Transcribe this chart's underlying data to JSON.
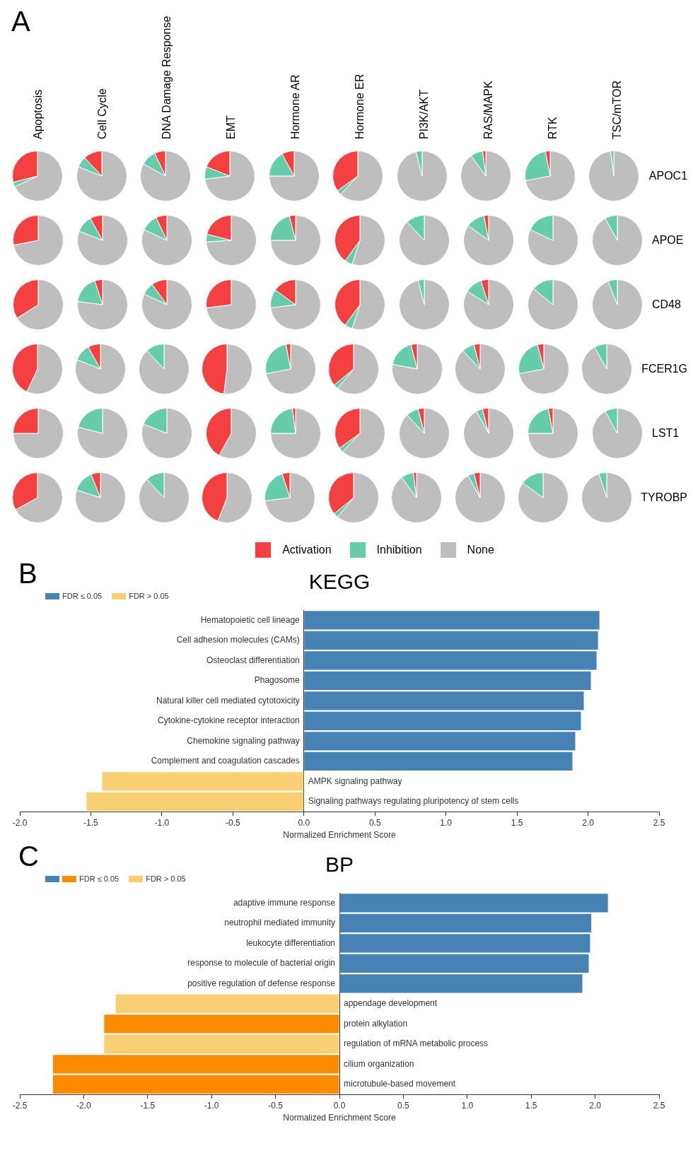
{
  "chart_data": [
    {
      "type": "pie",
      "annotations": [
        "A"
      ],
      "legend": "bottom",
      "categories": [
        "Activation",
        "Inhibition",
        "None"
      ],
      "colors": [
        "#f44040",
        "#66cdaa",
        "#bebebe"
      ],
      "y_categories": [
        "APOC1",
        "APOE",
        "CD48",
        "FCER1G",
        "LST1",
        "TYROBP"
      ],
      "series": [
        {
          "name": "Apoptosis",
          "values": [
            29,
            3,
            68
          ]
        },
        {
          "name": "Cell Cycle",
          "values": [
            12,
            7,
            81
          ]
        },
        {
          "name": "DNA Damage Response",
          "values": [
            7,
            10,
            83
          ]
        },
        {
          "name": "EMT",
          "values": [
            19,
            8,
            73
          ]
        },
        {
          "name": "Hormone AR",
          "values": [
            8,
            17,
            75
          ]
        },
        {
          "name": "Hormone ER",
          "values": [
            35,
            3,
            62
          ]
        },
        {
          "name": "PI3K/AKT",
          "values": [
            0,
            4,
            96
          ]
        },
        {
          "name": "RAS/MAPK",
          "values": [
            2,
            8,
            90
          ]
        },
        {
          "name": "RTK",
          "values": [
            3,
            25,
            72
          ]
        },
        {
          "name": "TSC/mTOR",
          "values": [
            0,
            2,
            98
          ]
        },
        {
          "values": [
            28,
            0,
            72
          ]
        },
        {
          "values": [
            8,
            11,
            81
          ]
        },
        {
          "values": [
            7,
            11,
            82
          ]
        },
        {
          "values": [
            21,
            5,
            74
          ]
        },
        {
          "values": [
            4,
            21,
            75
          ]
        },
        {
          "values": [
            40,
            5,
            55
          ]
        },
        {
          "values": [
            0,
            12,
            88
          ]
        },
        {
          "values": [
            3,
            12,
            85
          ]
        },
        {
          "values": [
            0,
            18,
            82
          ]
        },
        {
          "values": [
            0,
            8,
            92
          ]
        },
        {
          "values": [
            34,
            0,
            66
          ]
        },
        {
          "values": [
            5,
            18,
            77
          ]
        },
        {
          "values": [
            10,
            8,
            82
          ]
        },
        {
          "values": [
            27,
            0,
            73
          ]
        },
        {
          "values": [
            15,
            12,
            73
          ]
        },
        {
          "values": [
            40,
            5,
            55
          ]
        },
        {
          "values": [
            0,
            4,
            96
          ]
        },
        {
          "values": [
            5,
            11,
            84
          ]
        },
        {
          "values": [
            0,
            14,
            86
          ]
        },
        {
          "values": [
            0,
            6,
            94
          ]
        },
        {
          "values": [
            43,
            0,
            57
          ]
        },
        {
          "values": [
            8,
            11,
            81
          ]
        },
        {
          "values": [
            0,
            12,
            88
          ]
        },
        {
          "values": [
            48,
            0,
            52
          ]
        },
        {
          "values": [
            3,
            25,
            72
          ]
        },
        {
          "values": [
            36,
            3,
            61
          ]
        },
        {
          "values": [
            4,
            18,
            78
          ]
        },
        {
          "values": [
            4,
            8,
            88
          ]
        },
        {
          "values": [
            4,
            24,
            72
          ]
        },
        {
          "values": [
            0,
            8,
            92
          ]
        },
        {
          "values": [
            25,
            0,
            75
          ]
        },
        {
          "values": [
            0,
            21,
            79
          ]
        },
        {
          "values": [
            0,
            19,
            81
          ]
        },
        {
          "values": [
            42,
            0,
            58
          ]
        },
        {
          "values": [
            2,
            23,
            75
          ]
        },
        {
          "values": [
            35,
            3,
            62
          ]
        },
        {
          "values": [
            4,
            8,
            88
          ]
        },
        {
          "values": [
            4,
            4,
            92
          ]
        },
        {
          "values": [
            3,
            22,
            75
          ]
        },
        {
          "values": [
            0,
            8,
            92
          ]
        },
        {
          "values": [
            33,
            0,
            67
          ]
        },
        {
          "values": [
            6,
            14,
            80
          ]
        },
        {
          "values": [
            0,
            12,
            88
          ]
        },
        {
          "values": [
            44,
            0,
            56
          ]
        },
        {
          "values": [
            5,
            22,
            73
          ]
        },
        {
          "values": [
            36,
            3,
            61
          ]
        },
        {
          "values": [
            2,
            8,
            90
          ]
        },
        {
          "values": [
            4,
            4,
            92
          ]
        },
        {
          "values": [
            0,
            15,
            85
          ]
        },
        {
          "values": [
            0,
            5,
            95
          ]
        }
      ]
    },
    {
      "type": "bar",
      "orientation": "horizontal",
      "stacked": true,
      "title": "KEGG",
      "xlabel": "Normalized Enrichment Score",
      "annotations": [
        "B"
      ],
      "legend": "top left",
      "categories": [
        "Hematopoietic cell lineage",
        "Cell adhesion molecules (CAMs)",
        "Osteoclast differentiation",
        "Phagosome",
        "Natural killer cell mediated cytotoxicity",
        "Cytokine-cytokine receptor interaction",
        "Chemokine signaling pathway",
        "Complement and coagulation cascades",
        "AMPK signaling pathway",
        "Signaling pathways regulating pluripotency of stem cells"
      ],
      "series": [
        {
          "name": "FDR ≤ 0.05",
          "color": "#4682b4",
          "values": [
            2.08,
            2.07,
            2.06,
            2.02,
            1.97,
            1.95,
            1.91,
            1.89,
            null,
            null
          ]
        },
        {
          "name": "FDR > 0.05",
          "color": "#f9cf74",
          "values": [
            null,
            null,
            null,
            null,
            null,
            null,
            null,
            null,
            -1.42,
            -1.53
          ]
        }
      ],
      "xlim": [
        -2,
        2.5
      ],
      "xticks": [
        {
          "value": -2,
          "label": "-2.0"
        },
        {
          "value": -1.5,
          "label": "-1.5"
        },
        {
          "value": -1,
          "label": "-1.0"
        },
        {
          "value": -0.5,
          "label": "-0.5"
        },
        {
          "value": 0,
          "label": "0.0"
        },
        {
          "value": 0.5,
          "label": "0.5"
        },
        {
          "value": 1,
          "label": "1.0"
        },
        {
          "value": 1.5,
          "label": "1.5"
        },
        {
          "value": 2,
          "label": "2.0"
        },
        {
          "value": 2.5,
          "label": "2.5"
        }
      ]
    },
    {
      "type": "bar",
      "orientation": "horizontal",
      "stacked": true,
      "title": "BP",
      "xlabel": "Normalized Enrichment Score",
      "annotations": [
        "C"
      ],
      "legend": "top left",
      "categories": [
        "adaptive immune response",
        "neutrophil mediated immunity",
        "leukocyte differentiation",
        "response to molecule of bacterial origin",
        "positive regulation of defense response",
        "appendage development",
        "protein alkylation",
        "regulation of mRNA metabolic process",
        "cilium organization",
        "microtubule-based movement"
      ],
      "series": [
        {
          "name": "FDR ≤ 0.05",
          "colors": [
            "#4682b4",
            "#4682b4",
            "#4682b4",
            "#4682b4",
            "#4682b4",
            null,
            "#fb8c00",
            null,
            "#fb8c00",
            "#fb8c00"
          ],
          "values": [
            2.1,
            1.97,
            1.96,
            1.95,
            1.9,
            null,
            -1.84,
            null,
            -2.24,
            -2.24
          ]
        },
        {
          "name": "FDR > 0.05",
          "color": "#f9cf74",
          "values": [
            null,
            null,
            null,
            null,
            null,
            -1.75,
            null,
            -1.84,
            null,
            null
          ]
        }
      ],
      "xlim": [
        -2.5,
        2.5
      ],
      "xticks": [
        {
          "value": -2.5,
          "label": "-2.5"
        },
        {
          "value": -2,
          "label": "-2.0"
        },
        {
          "value": -1.5,
          "label": "-1.5"
        },
        {
          "value": -1,
          "label": "-1.0"
        },
        {
          "value": -0.5,
          "label": "-0.5"
        },
        {
          "value": 0,
          "label": "0.0"
        },
        {
          "value": 0.5,
          "label": "0.5"
        },
        {
          "value": 1,
          "label": "1.0"
        },
        {
          "value": 1.5,
          "label": "1.5"
        },
        {
          "value": 2,
          "label": "2.0"
        },
        {
          "value": 2.5,
          "label": "2.5"
        }
      ]
    }
  ]
}
